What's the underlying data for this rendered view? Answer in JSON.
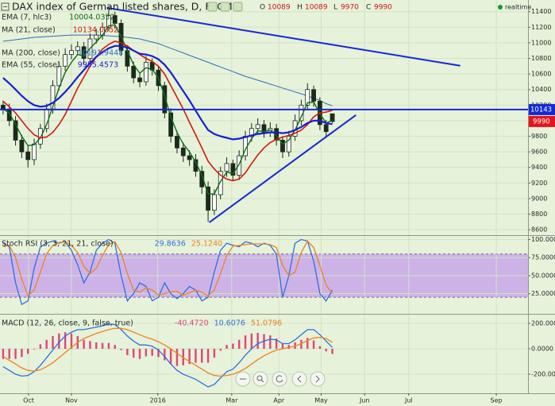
{
  "chart_data": [
    {
      "type": "candlestick",
      "title": "DAX index of German listed shares, D, FXCM",
      "status": "realtime",
      "ohlc_labels": [
        "O",
        "H",
        "L",
        "C"
      ],
      "open": [
        10200,
        10150,
        10000,
        9750,
        9600,
        9500,
        9700,
        9900,
        10150,
        10450,
        10700,
        10850,
        10900,
        10950,
        10800,
        11050,
        11100,
        11200,
        11350,
        11250,
        10900,
        10700,
        10550,
        10500,
        10750,
        10650,
        10450,
        10100,
        9800,
        9650,
        9550,
        9500,
        9350,
        9150,
        8850,
        9050,
        9350,
        9450,
        9300,
        9550,
        9800,
        9900,
        9950,
        9850,
        9900,
        9750,
        9600,
        9800,
        10000,
        10200,
        10400,
        10250,
        9950,
        10089
      ],
      "high": [
        10260,
        10220,
        10060,
        9820,
        9680,
        9770,
        9960,
        10220,
        10520,
        10760,
        10930,
        10980,
        11020,
        11010,
        11120,
        11180,
        11260,
        11420,
        11400,
        11300,
        10970,
        10760,
        10620,
        10830,
        10800,
        10700,
        10500,
        10160,
        9870,
        9720,
        9620,
        9570,
        9420,
        9220,
        9120,
        9410,
        9530,
        9500,
        9620,
        9870,
        9970,
        10030,
        10010,
        9980,
        9960,
        9800,
        9870,
        10080,
        10270,
        10480,
        10450,
        10300,
        10010,
        10089
      ],
      "low": [
        10080,
        9930,
        9680,
        9520,
        9400,
        9430,
        9640,
        9850,
        10090,
        10390,
        10640,
        10790,
        10840,
        10730,
        10750,
        10990,
        11040,
        11150,
        11180,
        10830,
        10630,
        10480,
        10430,
        10450,
        10580,
        10380,
        10030,
        9720,
        9580,
        9470,
        9420,
        9280,
        9060,
        8700,
        8790,
        8990,
        9280,
        9230,
        9240,
        9490,
        9730,
        9840,
        9780,
        9790,
        9680,
        9520,
        9540,
        9740,
        9940,
        10140,
        10180,
        9880,
        9780,
        9970
      ],
      "close": [
        10150,
        10000,
        9750,
        9600,
        9500,
        9700,
        9900,
        10150,
        10450,
        10700,
        10850,
        10900,
        10950,
        10800,
        11050,
        11100,
        11200,
        11350,
        11250,
        10900,
        10700,
        10550,
        10500,
        10750,
        10650,
        10450,
        10100,
        9800,
        9650,
        9550,
        9500,
        9350,
        9150,
        8850,
        9050,
        9350,
        9450,
        9300,
        9550,
        9800,
        9900,
        9950,
        9850,
        9900,
        9750,
        9600,
        9800,
        10000,
        10200,
        10400,
        10250,
        9950,
        9860,
        9990
      ],
      "up_color": "#ffffff",
      "down_color": "#1b2a1b",
      "last_color": "#e4141c",
      "series": [
        {
          "name": "EMA (7, hlc3)",
          "color": "#0f6b1a",
          "width": 1.4,
          "values": [
            10150,
            10100,
            9950,
            9800,
            9680,
            9690,
            9780,
            9950,
            10180,
            10420,
            10620,
            10750,
            10850,
            10830,
            10930,
            11010,
            11100,
            11220,
            11230,
            11080,
            10900,
            10720,
            10610,
            10680,
            10660,
            10550,
            10320,
            10050,
            9850,
            9700,
            9600,
            9470,
            9300,
            9060,
            9060,
            9220,
            9340,
            9320,
            9440,
            9630,
            9770,
            9870,
            9860,
            9880,
            9810,
            9700,
            9750,
            9880,
            10050,
            10230,
            10240,
            10090,
            9970,
            10004.0352
          ]
        },
        {
          "name": "MA (21, close)",
          "color": "#d41a0f",
          "width": 1.6,
          "values": [
            10250,
            10180,
            10100,
            10000,
            9900,
            9820,
            9780,
            9790,
            9850,
            9950,
            10080,
            10250,
            10420,
            10560,
            10700,
            10820,
            10920,
            10980,
            11020,
            11000,
            10960,
            10900,
            10850,
            10800,
            10760,
            10700,
            10600,
            10450,
            10300,
            10150,
            9980,
            9820,
            9650,
            9480,
            9380,
            9300,
            9250,
            9230,
            9250,
            9330,
            9450,
            9560,
            9650,
            9720,
            9760,
            9790,
            9810,
            9840,
            9880,
            9950,
            10050,
            10100,
            10110,
            10134.0352
          ]
        },
        {
          "name": "MA (200, close)",
          "color": "#2a6fc0",
          "width": 1,
          "values": [
            11020,
            11030,
            11040,
            11050,
            11060,
            11070,
            11075,
            11080,
            11085,
            11090,
            11095,
            11100,
            11100,
            11100,
            11100,
            11100,
            11095,
            11090,
            11085,
            11080,
            11070,
            11060,
            11050,
            11030,
            11010,
            10990,
            10960,
            10930,
            10900,
            10870,
            10840,
            10810,
            10780,
            10750,
            10720,
            10690,
            10660,
            10630,
            10600,
            10570,
            10545,
            10520,
            10495,
            10470,
            10445,
            10420,
            10395,
            10370,
            10345,
            10320,
            10290,
            10260,
            10220,
            10191.9448
          ]
        },
        {
          "name": "EMA (55, close)",
          "color": "#1a1fd0",
          "width": 2.2,
          "values": [
            10550,
            10480,
            10400,
            10320,
            10250,
            10200,
            10180,
            10190,
            10230,
            10290,
            10370,
            10460,
            10560,
            10650,
            10740,
            10820,
            10880,
            10930,
            10960,
            10960,
            10940,
            10900,
            10860,
            10850,
            10830,
            10790,
            10720,
            10620,
            10500,
            10380,
            10260,
            10130,
            10000,
            9880,
            9830,
            9800,
            9780,
            9760,
            9770,
            9790,
            9810,
            9830,
            9840,
            9850,
            9850,
            9840,
            9850,
            9880,
            9920,
            9970,
            10000,
            10000,
            9970,
            9955.4573
          ]
        }
      ],
      "trend_lines": [
        {
          "x": [
            17.2,
            74.1
          ],
          "y": [
            11450,
            10706
          ],
          "color": "#1428d6"
        },
        {
          "x": [
            33.7,
            57.3
          ],
          "y": [
            8694,
            10073
          ],
          "color": "#1428d6"
        }
      ],
      "hline": {
        "value": 10143,
        "color": "#1428d6"
      },
      "xlim": [
        0,
        85
      ],
      "ylim": [
        8530,
        11550
      ],
      "yticks": [
        8600,
        8800,
        9000,
        9200,
        9400,
        9600,
        9800,
        10000,
        10200,
        10400,
        10600,
        10800,
        11000,
        11200,
        11400
      ],
      "grid": true
    },
    {
      "type": "line",
      "title": "Stoch RSI (3, 3, 21, 21, close)",
      "series": [
        {
          "color": "#2f6fe0",
          "values": [
            95,
            90,
            40,
            10,
            15,
            60,
            90,
            95,
            98,
            95,
            97,
            85,
            65,
            40,
            55,
            85,
            95,
            100,
            95,
            50,
            15,
            25,
            40,
            35,
            15,
            20,
            40,
            25,
            18,
            25,
            35,
            30,
            15,
            20,
            55,
            85,
            95,
            92,
            90,
            97,
            95,
            90,
            95,
            92,
            80,
            20,
            50,
            95,
            100,
            98,
            70,
            25,
            15,
            29.8636
          ]
        },
        {
          "color": "#f0821e",
          "values": [
            90,
            92,
            75,
            45,
            22,
            30,
            55,
            80,
            92,
            96,
            97,
            92,
            82,
            63,
            53,
            60,
            78,
            93,
            97,
            82,
            53,
            30,
            27,
            33,
            30,
            23,
            25,
            28,
            28,
            23,
            26,
            30,
            27,
            22,
            30,
            53,
            78,
            91,
            92,
            93,
            94,
            94,
            94,
            93,
            89,
            64,
            50,
            55,
            82,
            98,
            89,
            64,
            37,
            25.124
          ],
          "value_labels": [
            null,
            null,
            null,
            null,
            null,
            null,
            null,
            null,
            null,
            null,
            null,
            null,
            null,
            null,
            null,
            null,
            null,
            null,
            null,
            null,
            null,
            null,
            null,
            null,
            null,
            null,
            null,
            null,
            null,
            null,
            null,
            null,
            null,
            null,
            null,
            null,
            null,
            null,
            null,
            null,
            null,
            null,
            null,
            null,
            null,
            null,
            null,
            null,
            null,
            null,
            null,
            null,
            null,
            "25.1240"
          ]
        }
      ],
      "band": {
        "from": 20,
        "to": 80,
        "color": "#c8a7ea"
      },
      "xlim": [
        0,
        85
      ],
      "ylim": [
        -3,
        105
      ],
      "yticks": [
        {
          "value": 25,
          "label": "25.0000"
        },
        {
          "value": 50,
          "label": "50.0000"
        },
        {
          "value": 75,
          "label": "75.0000"
        },
        {
          "value": 100,
          "label": "100.0000"
        }
      ],
      "grid": true
    },
    {
      "type": "line",
      "title": "MACD (12, 26, close, 9, false, true)",
      "series": [
        {
          "style": "histogram",
          "color": "#e0457a",
          "values": [
            -80,
            -80,
            -80,
            -65,
            -40,
            -5,
            35,
            70,
            100,
            120,
            130,
            120,
            100,
            70,
            60,
            50,
            45,
            45,
            30,
            -10,
            -50,
            -70,
            -80,
            -60,
            -55,
            -65,
            -90,
            -120,
            -135,
            -130,
            -120,
            -110,
            -110,
            -110,
            -70,
            -15,
            30,
            40,
            70,
            105,
            120,
            125,
            115,
            105,
            80,
            40,
            30,
            50,
            70,
            85,
            65,
            20,
            -20,
            -40.472
          ],
          "value_labels": [
            null,
            null,
            null,
            null,
            null,
            null,
            null,
            null,
            null,
            null,
            null,
            null,
            null,
            null,
            null,
            null,
            null,
            null,
            null,
            null,
            null,
            null,
            null,
            null,
            null,
            null,
            null,
            null,
            null,
            null,
            null,
            null,
            null,
            null,
            null,
            null,
            null,
            null,
            null,
            null,
            null,
            null,
            null,
            null,
            null,
            null,
            null,
            null,
            null,
            null,
            null,
            null,
            null,
            "-40.4720"
          ]
        },
        {
          "color": "#2f6fe0",
          "values": [
            -140,
            -170,
            -200,
            -215,
            -210,
            -180,
            -130,
            -70,
            -10,
            50,
            100,
            130,
            150,
            150,
            160,
            170,
            180,
            195,
            190,
            150,
            100,
            60,
            30,
            30,
            20,
            -10,
            -60,
            -120,
            -170,
            -200,
            -220,
            -240,
            -270,
            -300,
            -280,
            -230,
            -180,
            -160,
            -110,
            -50,
            0,
            40,
            60,
            75,
            70,
            40,
            40,
            70,
            110,
            150,
            150,
            110,
            60,
            10.6076
          ]
        },
        {
          "color": "#f0821e",
          "values": [
            -60,
            -90,
            -120,
            -150,
            -170,
            -175,
            -165,
            -140,
            -110,
            -70,
            -30,
            10,
            50,
            80,
            100,
            120,
            135,
            150,
            160,
            160,
            150,
            130,
            110,
            90,
            75,
            55,
            30,
            0,
            -35,
            -70,
            -100,
            -130,
            -160,
            -190,
            -210,
            -215,
            -210,
            -200,
            -180,
            -155,
            -120,
            -85,
            -55,
            -30,
            -10,
            0,
            10,
            20,
            40,
            65,
            85,
            90,
            80,
            51.0796
          ]
        }
      ],
      "xlim": [
        0,
        85
      ],
      "ylim": [
        -350,
        262
      ],
      "yticks": [
        {
          "value": -200,
          "label": "-200.0000"
        },
        {
          "value": 0,
          "label": "0.0000"
        },
        {
          "value": 200,
          "label": "200.0000"
        }
      ],
      "xticks": [
        {
          "value": 4.6,
          "label": "Oct"
        },
        {
          "value": 11.5,
          "label": "Nov"
        },
        {
          "value": 25.4,
          "label": "2016"
        },
        {
          "value": 37.3,
          "label": "Mar"
        },
        {
          "value": 44.9,
          "label": "Apr"
        },
        {
          "value": 51.7,
          "label": "May"
        },
        {
          "value": 58.7,
          "label": "Jun"
        },
        {
          "value": 65.8,
          "label": "Jul"
        },
        {
          "value": 79.9,
          "label": "Sep"
        }
      ],
      "grid": true
    }
  ]
}
